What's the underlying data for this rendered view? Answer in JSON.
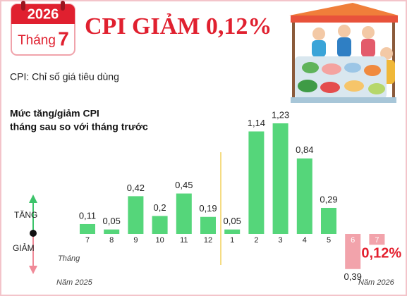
{
  "header": {
    "year": "2026",
    "month_word": "Tháng",
    "month": "7",
    "title": "CPI GIẢM 0,12%",
    "note": "CPI: Chỉ số giá tiêu dùng"
  },
  "chart_data": {
    "type": "bar",
    "title": "Mức tăng/giảm CPI",
    "subtitle": "tháng sau so với tháng trước",
    "up_label": "TĂNG",
    "down_label": "GIẢM",
    "x_label": "Tháng",
    "year_start": "Năm 2025",
    "year_end": "Năm 2026",
    "categories": [
      "7",
      "8",
      "9",
      "10",
      "11",
      "12",
      "1",
      "2",
      "3",
      "4",
      "5",
      "6",
      "7"
    ],
    "values": [
      0.11,
      0.05,
      0.42,
      0.2,
      0.45,
      0.19,
      0.05,
      1.14,
      1.23,
      0.84,
      0.29,
      -0.39,
      -0.12
    ],
    "value_labels": [
      "0,11",
      "0,05",
      "0,42",
      "0,2",
      "0,45",
      "0,19",
      "0,05",
      "1,14",
      "1,23",
      "0,84",
      "0,29",
      "0,39",
      "0,12%"
    ],
    "color": "#55d67a",
    "negative_color": "#f2a3ab"
  }
}
